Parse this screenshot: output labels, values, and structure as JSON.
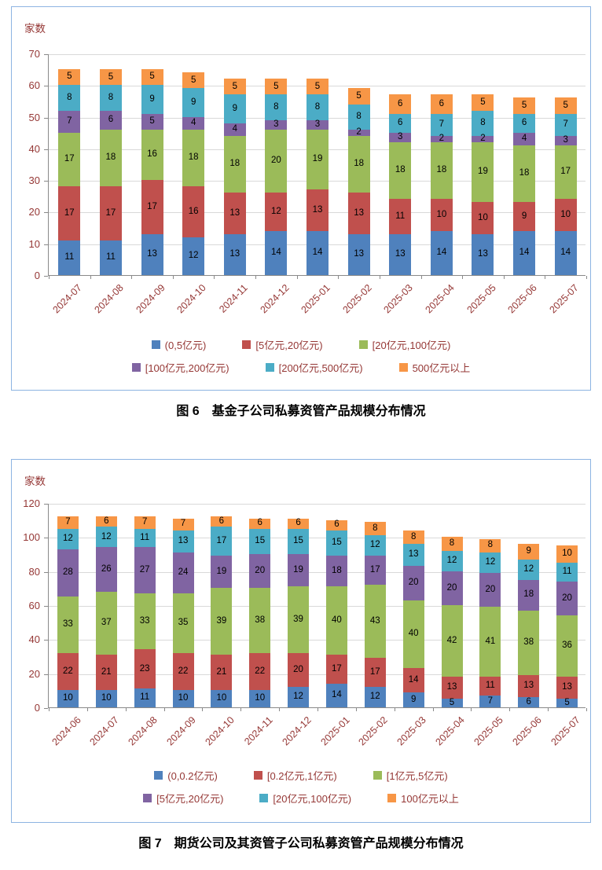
{
  "styles": {
    "box_border": "#8DB4E2",
    "axis_text_color": "#953735",
    "gridline_color": "#D9D9D9",
    "axis_line_color": "#898989",
    "value_label_color": "#000000"
  },
  "chart_data": [
    {
      "type": "bar",
      "stacked": true,
      "caption": "图 6　基金子公司私募资管产品规模分布情况",
      "ylabel": "家数",
      "ymax": 70,
      "ystep": 20,
      "ylim": [
        0,
        70
      ],
      "grid": true,
      "legend_position": "bottom",
      "categories": [
        "2024-07",
        "2024-08",
        "2024-09",
        "2024-10",
        "2024-11",
        "2024-12",
        "2025-01",
        "2025-02",
        "2025-03",
        "2025-04",
        "2025-05",
        "2025-06",
        "2025-07"
      ],
      "series": [
        {
          "name": "(0,5亿元)",
          "color": "#4F81BD",
          "values": [
            11,
            11,
            13,
            12,
            13,
            14,
            14,
            13,
            13,
            14,
            13,
            14,
            14
          ]
        },
        {
          "name": "[5亿元,20亿元)",
          "color": "#C0504D",
          "values": [
            17,
            17,
            17,
            16,
            13,
            12,
            13,
            13,
            11,
            10,
            10,
            9,
            10
          ]
        },
        {
          "name": "[20亿元,100亿元)",
          "color": "#9BBB59",
          "values": [
            17,
            18,
            16,
            18,
            18,
            20,
            19,
            18,
            18,
            18,
            19,
            18,
            17
          ]
        },
        {
          "name": "[100亿元,200亿元)",
          "color": "#8064A2",
          "values": [
            7,
            6,
            5,
            4,
            4,
            3,
            3,
            2,
            3,
            2,
            2,
            4,
            3
          ]
        },
        {
          "name": "[200亿元,500亿元)",
          "color": "#4BACC6",
          "values": [
            8,
            8,
            9,
            9,
            9,
            8,
            8,
            8,
            6,
            7,
            8,
            6,
            7
          ]
        },
        {
          "name": "500亿元以上",
          "color": "#F79646",
          "values": [
            5,
            5,
            5,
            5,
            5,
            5,
            5,
            5,
            6,
            6,
            5,
            5,
            5
          ]
        }
      ]
    },
    {
      "type": "bar",
      "stacked": true,
      "caption": "图 7　期货公司及其资管子公司私募资管产品规模分布情况",
      "ylabel": "家数",
      "ymax": 120,
      "ystep": 20,
      "ylim": [
        0,
        120
      ],
      "grid": true,
      "legend_position": "bottom",
      "categories": [
        "2024-06",
        "2024-07",
        "2024-08",
        "2024-09",
        "2024-10",
        "2024-11",
        "2024-12",
        "2025-01",
        "2025-02",
        "2025-03",
        "2025-04",
        "2025-05",
        "2025-06",
        "2025-07"
      ],
      "series": [
        {
          "name": "(0,0.2亿元)",
          "color": "#4F81BD",
          "values": [
            10,
            10,
            11,
            10,
            10,
            10,
            12,
            14,
            12,
            9,
            5,
            7,
            6,
            5
          ]
        },
        {
          "name": "[0.2亿元,1亿元)",
          "color": "#C0504D",
          "values": [
            22,
            21,
            23,
            22,
            21,
            22,
            20,
            17,
            17,
            14,
            13,
            11,
            13,
            13
          ]
        },
        {
          "name": "[1亿元,5亿元)",
          "color": "#9BBB59",
          "values": [
            33,
            37,
            33,
            35,
            39,
            38,
            39,
            40,
            43,
            40,
            42,
            41,
            38,
            36
          ]
        },
        {
          "name": "[5亿元,20亿元)",
          "color": "#8064A2",
          "values": [
            28,
            26,
            27,
            24,
            19,
            20,
            19,
            18,
            17,
            20,
            20,
            20,
            18,
            20
          ]
        },
        {
          "name": "[20亿元,100亿元)",
          "color": "#4BACC6",
          "values": [
            12,
            12,
            11,
            13,
            17,
            15,
            15,
            15,
            12,
            13,
            12,
            12,
            12,
            11
          ]
        },
        {
          "name": "100亿元以上",
          "color": "#F79646",
          "values": [
            7,
            6,
            7,
            7,
            6,
            6,
            6,
            6,
            8,
            8,
            8,
            8,
            9,
            10
          ]
        }
      ]
    }
  ]
}
